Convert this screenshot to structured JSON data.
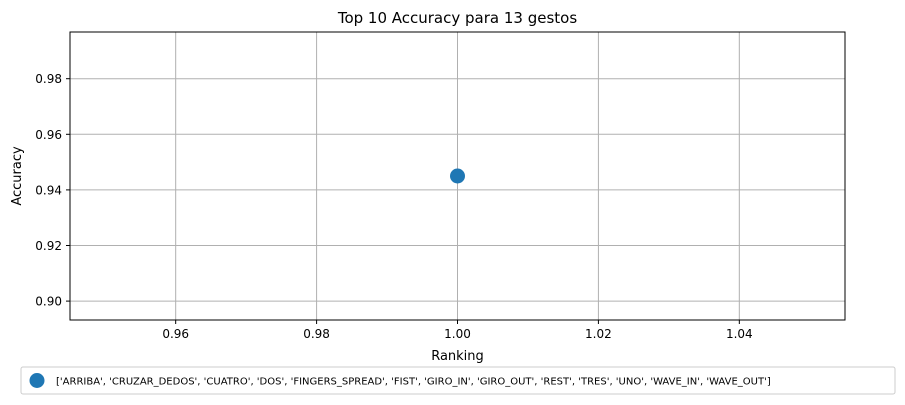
{
  "chart_data": {
    "type": "scatter",
    "title": "Top 10 Accuracy para 13 gestos",
    "xlabel": "Ranking",
    "ylabel": "Accuracy",
    "xlim": [
      0.945,
      1.055
    ],
    "ylim": [
      0.8932,
      0.9968
    ],
    "xticks": [
      0.96,
      0.98,
      1.0,
      1.02,
      1.04
    ],
    "xtick_labels": [
      "0.96",
      "0.98",
      "1.00",
      "1.02",
      "1.04"
    ],
    "yticks": [
      0.9,
      0.92,
      0.94,
      0.96,
      0.98
    ],
    "ytick_labels": [
      "0.90",
      "0.92",
      "0.94",
      "0.96",
      "0.98"
    ],
    "grid": true,
    "legend_position": "bottom-center",
    "series": [
      {
        "name": "['ARRIBA', 'CRUZAR_DEDOS', 'CUATRO', 'DOS', 'FINGERS_SPREAD', 'FIST', 'GIRO_IN', 'GIRO_OUT', 'REST', 'TRES', 'UNO', 'WAVE_IN', 'WAVE_OUT']",
        "color": "#1f77b4",
        "points": [
          {
            "x": 1.0,
            "y": 0.945
          }
        ]
      }
    ]
  }
}
